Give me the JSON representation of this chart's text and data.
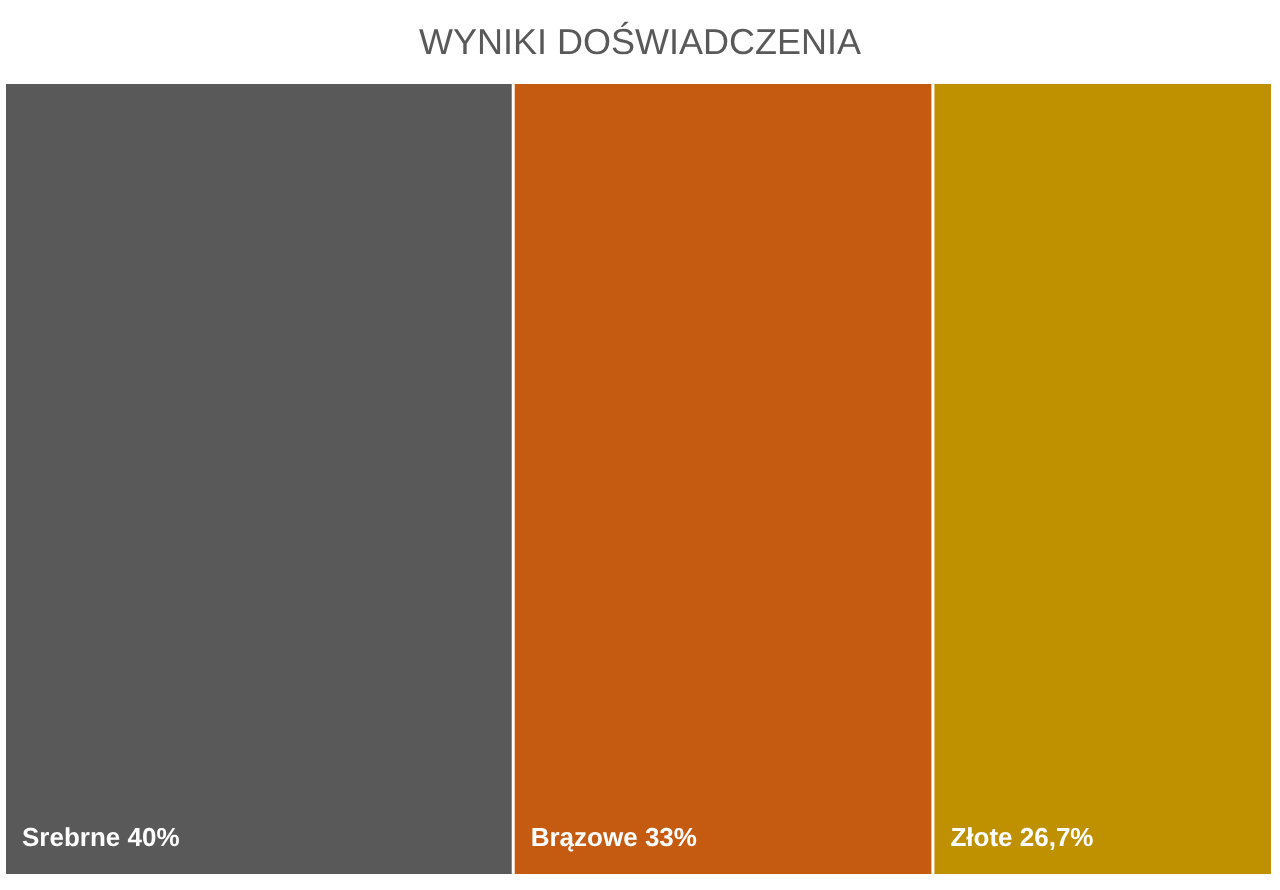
{
  "chart_data": {
    "type": "other",
    "title": "WYNIKI DOŚWIADCZENIA",
    "categories": [
      "Srebrne",
      "Brązowe",
      "Złote"
    ],
    "values": [
      40,
      33,
      26.7
    ],
    "value_labels": [
      "40%",
      "33%",
      "26,7%"
    ],
    "colors": [
      "#595959",
      "#c55a11",
      "#bf9000"
    ]
  }
}
